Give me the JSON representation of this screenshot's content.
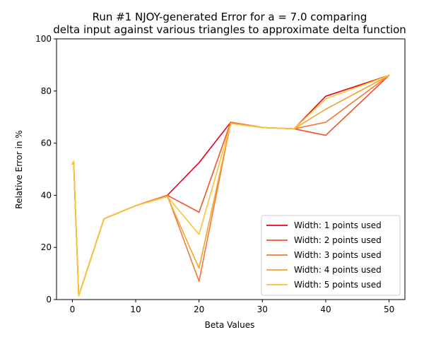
{
  "chart_data": {
    "type": "line",
    "title_lines": [
      "Run #1 NJOY-generated Error for a = 7.0 comparing",
      "delta input against various triangles to approximate delta function"
    ],
    "xlabel": "Beta Values",
    "ylabel": "Relative Error in %",
    "xlim": [
      -2.5,
      52.5
    ],
    "ylim": [
      0,
      100
    ],
    "xticks": [
      0,
      10,
      20,
      30,
      40,
      50
    ],
    "yticks": [
      0,
      20,
      40,
      60,
      80,
      100
    ],
    "grid": false,
    "legend_position": "lower-right",
    "x": [
      0,
      0.2,
      1,
      5,
      10,
      15,
      20,
      25,
      30,
      35,
      40,
      50
    ],
    "series": [
      {
        "name": "Width: 1 points used",
        "color": "#e8001c",
        "values": [
          52,
          53,
          1.5,
          31,
          36,
          40,
          52.5,
          68,
          66,
          65.5,
          78,
          86
        ]
      },
      {
        "name": "Width: 2 points used",
        "color": "#f0522a",
        "values": [
          52,
          53,
          1.5,
          31,
          36,
          40,
          33.5,
          68,
          66,
          65.5,
          63,
          86
        ]
      },
      {
        "name": "Width: 3 points used",
        "color": "#f27a35",
        "values": [
          52,
          53,
          1.5,
          31,
          36,
          40,
          7,
          68,
          66,
          65.5,
          68,
          86
        ]
      },
      {
        "name": "Width: 4 points used",
        "color": "#f6a12e",
        "values": [
          52,
          53,
          1.5,
          31,
          36,
          39.5,
          12,
          67.5,
          66,
          65.5,
          73,
          86
        ]
      },
      {
        "name": "Width: 5 points used",
        "color": "#f8c534",
        "values": [
          52,
          53,
          1.5,
          31,
          36,
          39.5,
          25,
          67.5,
          66,
          65.5,
          77,
          86
        ]
      }
    ]
  }
}
